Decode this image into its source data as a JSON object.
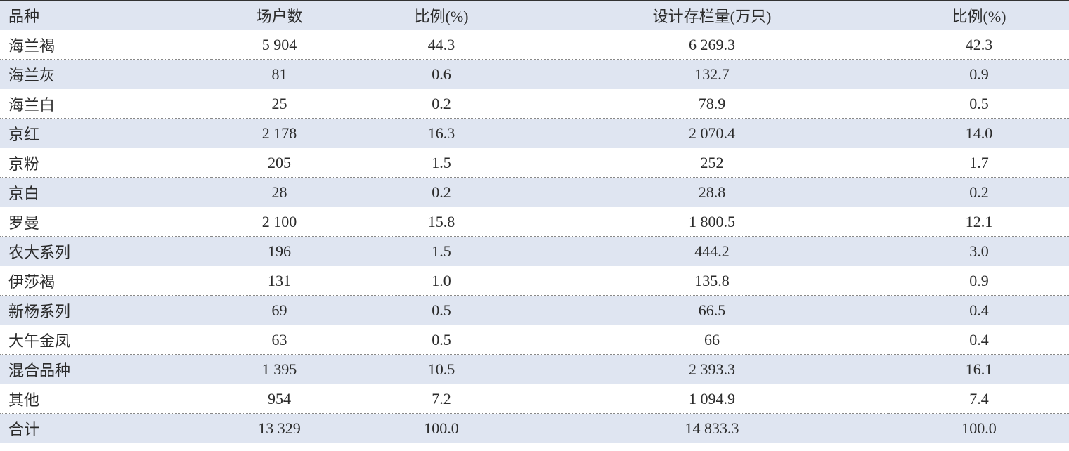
{
  "table": {
    "header": [
      "品种",
      "场户数",
      "比例(%)",
      "设计存栏量(万只)",
      "比例(%)"
    ],
    "rows": [
      [
        "海兰褐",
        "5 904",
        "44.3",
        "6 269.3",
        "42.3"
      ],
      [
        "海兰灰",
        "81",
        "0.6",
        "132.7",
        "0.9"
      ],
      [
        "海兰白",
        "25",
        "0.2",
        "78.9",
        "0.5"
      ],
      [
        "京红",
        "2 178",
        "16.3",
        "2 070.4",
        "14.0"
      ],
      [
        "京粉",
        "205",
        "1.5",
        "252",
        "1.7"
      ],
      [
        "京白",
        "28",
        "0.2",
        "28.8",
        "0.2"
      ],
      [
        "罗曼",
        "2 100",
        "15.8",
        "1 800.5",
        "12.1"
      ],
      [
        "农大系列",
        "196",
        "1.5",
        "444.2",
        "3.0"
      ],
      [
        "伊莎褐",
        "131",
        "1.0",
        "135.8",
        "0.9"
      ],
      [
        "新杨系列",
        "69",
        "0.5",
        "66.5",
        "0.4"
      ],
      [
        "大午金凤",
        "63",
        "0.5",
        "66",
        "0.4"
      ],
      [
        "混合品种",
        "1 395",
        "10.5",
        "2 393.3",
        "16.1"
      ],
      [
        "其他",
        "954",
        "7.2",
        "1 094.9",
        "7.4"
      ],
      [
        "合计",
        "13 329",
        "100.0",
        "14 833.3",
        "100.0"
      ]
    ]
  }
}
